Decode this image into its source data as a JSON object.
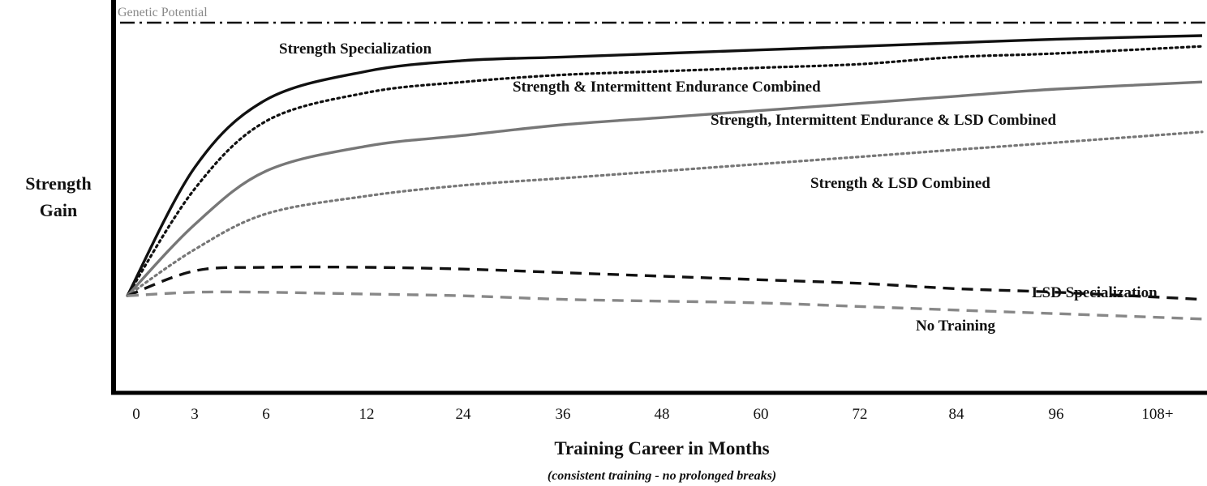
{
  "chart_data": {
    "type": "line",
    "title": "",
    "xlabel": "Training Career in Months",
    "xlabel_note": "(consistent training - no prolonged breaks)",
    "ylabel_line1": "Strength",
    "ylabel_line2": "Gain",
    "x_ticks": [
      "0",
      "3",
      "6",
      "12",
      "24",
      "36",
      "48",
      "60",
      "72",
      "84",
      "96",
      "108+"
    ],
    "ylim": [
      0,
      100
    ],
    "grid": false,
    "reference_line": {
      "name": "Genetic Potential",
      "value": 96,
      "color": "#777777",
      "style": "dash-dot"
    },
    "series": [
      {
        "name": "Strength Specialization",
        "style": "solid",
        "color": "#111111",
        "values": [
          22,
          58,
          77,
          85,
          88,
          89,
          90,
          91,
          92,
          93,
          94,
          95
        ]
      },
      {
        "name": "Strength & Intermittent Endurance Combined",
        "style": "dotted",
        "color": "#111111",
        "values": [
          22,
          52,
          71,
          79,
          82,
          84,
          85,
          86,
          87,
          89,
          90,
          92
        ]
      },
      {
        "name": "Strength, Intermittent Endurance & LSD Combined",
        "style": "solid",
        "color": "#777777",
        "values": [
          22,
          42,
          57,
          64,
          67,
          70,
          72,
          74,
          76,
          78,
          80,
          82
        ]
      },
      {
        "name": "Strength & LSD Combined",
        "style": "dotted",
        "color": "#777777",
        "values": [
          22,
          35,
          45,
          50,
          53,
          55,
          57,
          59,
          61,
          63,
          65,
          68
        ]
      },
      {
        "name": "LSD Specialization",
        "style": "dashed",
        "color": "#111111",
        "values": [
          22,
          29,
          30,
          30,
          29.5,
          28.5,
          27.5,
          26.5,
          25.5,
          24,
          23,
          21
        ]
      },
      {
        "name": "No Training",
        "style": "dashed",
        "color": "#888888",
        "values": [
          22,
          23,
          23,
          22.5,
          22,
          21,
          20.5,
          20,
          19,
          18,
          17,
          15.5
        ]
      }
    ],
    "annotations": [
      "Genetic Potential",
      "Strength Specialization",
      "Strength & Intermittent Endurance Combined",
      "Strength, Intermittent Endurance & LSD Combined",
      "Strength & LSD Combined",
      "LSD Specialization",
      "No Training"
    ]
  }
}
